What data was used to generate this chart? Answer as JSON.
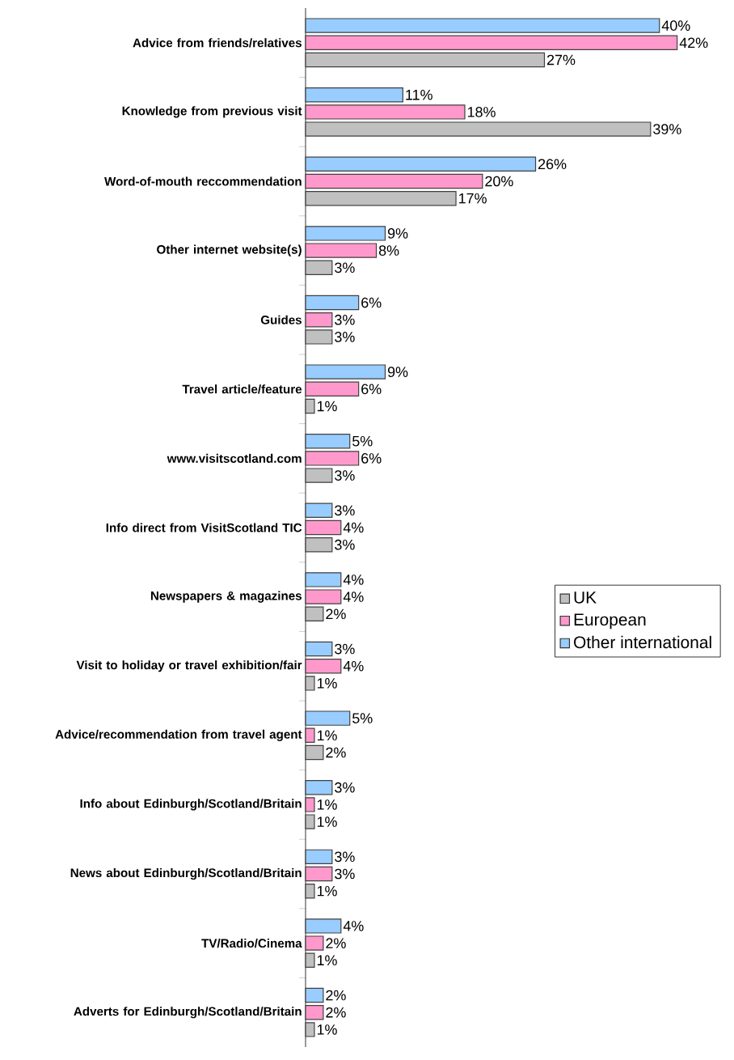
{
  "chart_data": {
    "type": "bar",
    "orientation": "horizontal",
    "legend": "right",
    "categories": [
      "Advice from friends/relatives",
      "Knowledge from previous visit",
      "Word-of-mouth reccommendation",
      "Other internet website(s)",
      "Guides",
      "Travel article/feature",
      "www.visitscotland.com",
      "Info direct from VisitScotland TIC",
      "Newspapers & magazines",
      "Visit to holiday or travel exhibition/fair",
      "Advice/recommendation from travel agent",
      "Info about Edinburgh/Scotland/Britain",
      "News about Edinburgh/Scotland/Britain",
      "TV/Radio/Cinema",
      "Adverts for Edinburgh/Scotland/Britain"
    ],
    "series": [
      {
        "name": "UK",
        "color": "#c0c0c0",
        "values": [
          27,
          39,
          17,
          3,
          3,
          1,
          3,
          3,
          2,
          1,
          2,
          1,
          1,
          1,
          1
        ],
        "value_labels": [
          "27%",
          "39%",
          "17%",
          "3%",
          "3%",
          "1%",
          "3%",
          "3%",
          "2%",
          "1%",
          "2%",
          "1%",
          "1%",
          "1%",
          "1%"
        ]
      },
      {
        "name": "European",
        "color": "#ff99cc",
        "values": [
          42,
          18,
          20,
          8,
          3,
          6,
          6,
          4,
          4,
          4,
          1,
          1,
          3,
          2,
          2
        ],
        "value_labels": [
          "42%",
          "18%",
          "20%",
          "8%",
          "3%",
          "6%",
          "6%",
          "4%",
          "4%",
          "4%",
          "1%",
          "1%",
          "3%",
          "2%",
          "2%"
        ]
      },
      {
        "name": "Other international",
        "color": "#99ccff",
        "values": [
          40,
          11,
          26,
          9,
          6,
          9,
          5,
          3,
          4,
          3,
          5,
          3,
          3,
          4,
          2
        ],
        "value_labels": [
          "40%",
          "11%",
          "26%",
          "9%",
          "6%",
          "9%",
          "5%",
          "3%",
          "4%",
          "3%",
          "5%",
          "3%",
          "3%",
          "4%",
          "2%"
        ]
      }
    ]
  }
}
